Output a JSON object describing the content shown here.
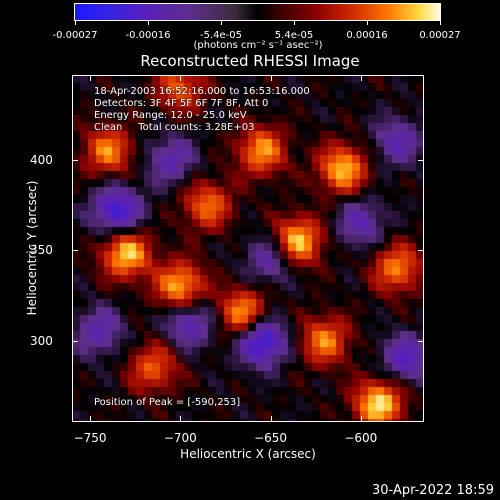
{
  "colorbar": {
    "ticks": [
      "-0.00027",
      "-0.00016",
      "-5.4e-05",
      "5.4e-05",
      "0.00016",
      "0.00027"
    ],
    "unit": "(photons cm⁻² s⁻¹ asec⁻²)"
  },
  "annotations": {
    "time": "18-Apr-2003 16:52:16.000 to 16:53:16.000",
    "detectors": "Detectors: 3F 4F 5F 6F 7F 8F, Att 0",
    "energy": "Energy Range: 12.0 - 25.0 keV",
    "clean": "Clean     Total counts: 3.28E+03",
    "peak": "Position of Peak = [-590,253]"
  },
  "footer": {
    "timestamp": "30-Apr-2022 18:59"
  },
  "chart_data": {
    "type": "heatmap",
    "title": "Reconstructed RHESSI Image",
    "xlabel": "Heliocentric X (arcsec)",
    "ylabel": "Heliocentric Y (arcsec)",
    "xlim": [
      -760,
      -565
    ],
    "ylim": [
      255,
      447
    ],
    "xticks": [
      -750,
      -700,
      -650,
      -600
    ],
    "yticks": [
      300,
      350,
      400
    ],
    "colorbar_range": [
      -0.00027,
      0.00027
    ],
    "colormap": [
      "#1a1aff",
      "#5a1fb8",
      "#5e2f8a",
      "#000000",
      "#8a0000",
      "#d02a00",
      "#ff7a00",
      "#ffd640",
      "#ffffe0"
    ],
    "peak_position": [
      -590,
      253
    ],
    "features": [
      {
        "x": -735,
        "y": 372,
        "level": -0.8
      },
      {
        "x": -745,
        "y": 305,
        "level": -0.5
      },
      {
        "x": -655,
        "y": 300,
        "level": -0.9
      },
      {
        "x": -695,
        "y": 310,
        "level": -0.6
      },
      {
        "x": -575,
        "y": 290,
        "level": -0.6
      },
      {
        "x": -650,
        "y": 345,
        "level": -0.5
      },
      {
        "x": -705,
        "y": 400,
        "level": -0.5
      },
      {
        "x": -600,
        "y": 365,
        "level": -0.5
      },
      {
        "x": -580,
        "y": 410,
        "level": -0.5
      },
      {
        "x": -730,
        "y": 348,
        "level": 0.9
      },
      {
        "x": -700,
        "y": 330,
        "level": 0.85
      },
      {
        "x": -665,
        "y": 315,
        "level": 0.8
      },
      {
        "x": -635,
        "y": 355,
        "level": 0.9
      },
      {
        "x": -610,
        "y": 395,
        "level": 0.85
      },
      {
        "x": -655,
        "y": 405,
        "level": 0.75
      },
      {
        "x": -740,
        "y": 405,
        "level": 0.7
      },
      {
        "x": -590,
        "y": 265,
        "level": 0.95
      },
      {
        "x": -620,
        "y": 300,
        "level": 0.7
      },
      {
        "x": -715,
        "y": 285,
        "level": 0.6
      },
      {
        "x": -685,
        "y": 375,
        "level": 0.65
      },
      {
        "x": -580,
        "y": 340,
        "level": 0.7
      },
      {
        "x": -700,
        "y": 440,
        "level": 0.6
      }
    ]
  }
}
